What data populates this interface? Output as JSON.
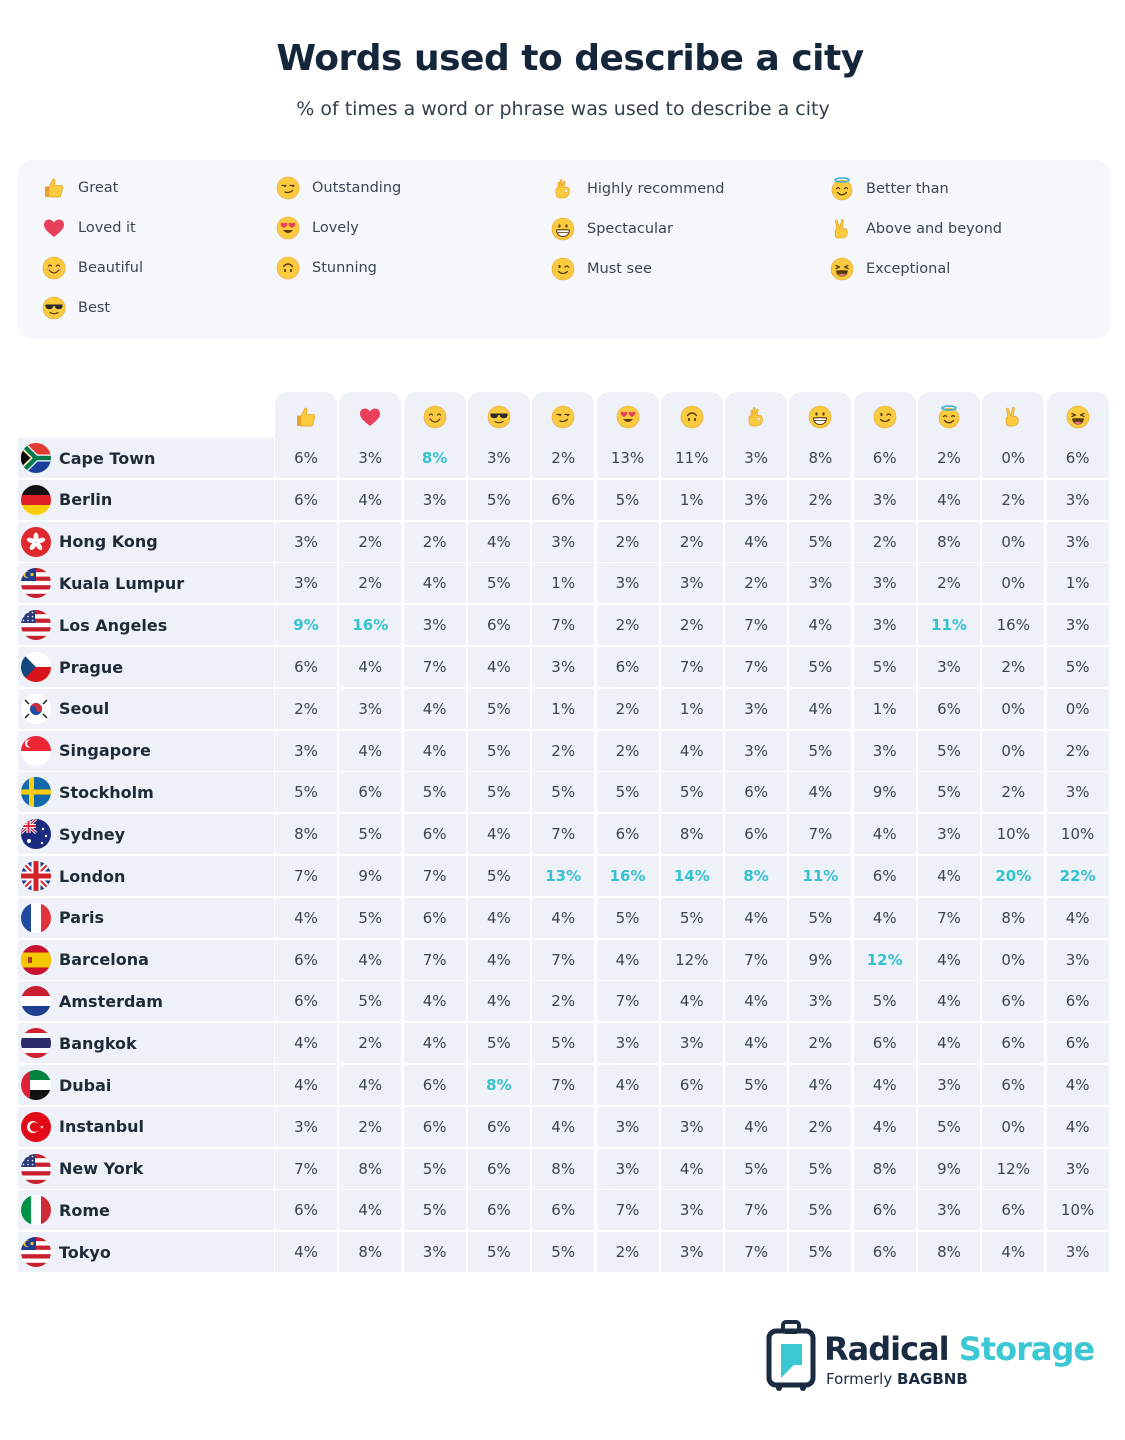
{
  "header": {
    "title": "Words used to describe a city",
    "subtitle": "% of times a word or phrase was used to describe a city"
  },
  "legend": [
    {
      "icon": "thumbs-up-icon",
      "label": "Great"
    },
    {
      "icon": "heart-icon",
      "label": "Loved it"
    },
    {
      "icon": "smiling-face-icon",
      "label": "Beautiful"
    },
    {
      "icon": "sunglasses-face-icon",
      "label": "Best"
    },
    {
      "icon": "smirking-face-icon",
      "label": "Outstanding"
    },
    {
      "icon": "heart-eyes-face-icon",
      "label": "Lovely"
    },
    {
      "icon": "upside-down-face-icon",
      "label": "Stunning"
    },
    {
      "icon": "ok-hand-icon",
      "label": "Highly recommend"
    },
    {
      "icon": "grinning-face-icon",
      "label": "Spectacular"
    },
    {
      "icon": "winking-face-icon",
      "label": "Must see"
    },
    {
      "icon": "halo-face-icon",
      "label": "Better than"
    },
    {
      "icon": "victory-hand-icon",
      "label": "Above and beyond"
    },
    {
      "icon": "laughing-face-icon",
      "label": "Exceptional"
    }
  ],
  "columns": [
    "thumbs-up-icon",
    "heart-icon",
    "smiling-face-icon",
    "sunglasses-face-icon",
    "smirking-face-icon",
    "heart-eyes-face-icon",
    "upside-down-face-icon",
    "ok-hand-icon",
    "grinning-face-icon",
    "winking-face-icon",
    "halo-face-icon",
    "victory-hand-icon",
    "laughing-face-icon"
  ],
  "highlight_color": "#35c2d0",
  "rows": [
    {
      "city": "Cape Town",
      "flag": "south-africa-flag-icon",
      "values": [
        "6%",
        "3%",
        "8%",
        "3%",
        "2%",
        "13%",
        "11%",
        "3%",
        "8%",
        "6%",
        "2%",
        "0%",
        "6%"
      ],
      "highlight": [
        2
      ]
    },
    {
      "city": "Berlin",
      "flag": "germany-flag-icon",
      "values": [
        "6%",
        "4%",
        "3%",
        "5%",
        "6%",
        "5%",
        "1%",
        "3%",
        "2%",
        "3%",
        "4%",
        "2%",
        "3%"
      ],
      "highlight": []
    },
    {
      "city": "Hong Kong",
      "flag": "hong-kong-flag-icon",
      "values": [
        "3%",
        "2%",
        "2%",
        "4%",
        "3%",
        "2%",
        "2%",
        "4%",
        "5%",
        "2%",
        "8%",
        "0%",
        "3%"
      ],
      "highlight": []
    },
    {
      "city": "Kuala Lumpur",
      "flag": "malaysia-flag-icon",
      "values": [
        "3%",
        "2%",
        "4%",
        "5%",
        "1%",
        "3%",
        "3%",
        "2%",
        "3%",
        "3%",
        "2%",
        "0%",
        "1%"
      ],
      "highlight": []
    },
    {
      "city": "Los Angeles",
      "flag": "usa-flag-icon",
      "values": [
        "9%",
        "16%",
        "3%",
        "6%",
        "7%",
        "2%",
        "2%",
        "7%",
        "4%",
        "3%",
        "11%",
        "16%",
        "3%"
      ],
      "highlight": [
        0,
        1,
        10
      ]
    },
    {
      "city": "Prague",
      "flag": "czech-flag-icon",
      "values": [
        "6%",
        "4%",
        "7%",
        "4%",
        "3%",
        "6%",
        "7%",
        "7%",
        "5%",
        "5%",
        "3%",
        "2%",
        "5%"
      ],
      "highlight": []
    },
    {
      "city": "Seoul",
      "flag": "south-korea-flag-icon",
      "values": [
        "2%",
        "3%",
        "4%",
        "5%",
        "1%",
        "2%",
        "1%",
        "3%",
        "4%",
        "1%",
        "6%",
        "0%",
        "0%"
      ],
      "highlight": []
    },
    {
      "city": "Singapore",
      "flag": "singapore-flag-icon",
      "values": [
        "3%",
        "4%",
        "4%",
        "5%",
        "2%",
        "2%",
        "4%",
        "3%",
        "5%",
        "3%",
        "5%",
        "0%",
        "2%"
      ],
      "highlight": []
    },
    {
      "city": "Stockholm",
      "flag": "sweden-flag-icon",
      "values": [
        "5%",
        "6%",
        "5%",
        "5%",
        "5%",
        "5%",
        "5%",
        "6%",
        "4%",
        "9%",
        "5%",
        "2%",
        "3%"
      ],
      "highlight": []
    },
    {
      "city": "Sydney",
      "flag": "australia-flag-icon",
      "values": [
        "8%",
        "5%",
        "6%",
        "4%",
        "7%",
        "6%",
        "8%",
        "6%",
        "7%",
        "4%",
        "3%",
        "10%",
        "10%"
      ],
      "highlight": []
    },
    {
      "city": "London",
      "flag": "uk-flag-icon",
      "values": [
        "7%",
        "9%",
        "7%",
        "5%",
        "13%",
        "16%",
        "14%",
        "8%",
        "11%",
        "6%",
        "4%",
        "20%",
        "22%"
      ],
      "highlight": [
        4,
        5,
        6,
        7,
        8,
        11,
        12
      ]
    },
    {
      "city": "Paris",
      "flag": "france-flag-icon",
      "values": [
        "4%",
        "5%",
        "6%",
        "4%",
        "4%",
        "5%",
        "5%",
        "4%",
        "5%",
        "4%",
        "7%",
        "8%",
        "4%"
      ],
      "highlight": []
    },
    {
      "city": "Barcelona",
      "flag": "spain-flag-icon",
      "values": [
        "6%",
        "4%",
        "7%",
        "4%",
        "7%",
        "4%",
        "12%",
        "7%",
        "9%",
        "12%",
        "4%",
        "0%",
        "3%"
      ],
      "highlight": [
        9
      ]
    },
    {
      "city": "Amsterdam",
      "flag": "netherlands-flag-icon",
      "values": [
        "6%",
        "5%",
        "4%",
        "4%",
        "2%",
        "7%",
        "4%",
        "4%",
        "3%",
        "5%",
        "4%",
        "6%",
        "6%"
      ],
      "highlight": []
    },
    {
      "city": "Bangkok",
      "flag": "thailand-flag-icon",
      "values": [
        "4%",
        "2%",
        "4%",
        "5%",
        "5%",
        "3%",
        "3%",
        "4%",
        "2%",
        "6%",
        "4%",
        "6%",
        "6%"
      ],
      "highlight": []
    },
    {
      "city": "Dubai",
      "flag": "uae-flag-icon",
      "values": [
        "4%",
        "4%",
        "6%",
        "8%",
        "7%",
        "4%",
        "6%",
        "5%",
        "4%",
        "4%",
        "3%",
        "6%",
        "4%"
      ],
      "highlight": [
        3
      ]
    },
    {
      "city": "Instanbul",
      "flag": "turkey-flag-icon",
      "values": [
        "3%",
        "2%",
        "6%",
        "6%",
        "4%",
        "3%",
        "3%",
        "4%",
        "2%",
        "4%",
        "5%",
        "0%",
        "4%"
      ],
      "highlight": []
    },
    {
      "city": "New York",
      "flag": "usa-flag-icon",
      "values": [
        "7%",
        "8%",
        "5%",
        "6%",
        "8%",
        "3%",
        "4%",
        "5%",
        "5%",
        "8%",
        "9%",
        "12%",
        "3%"
      ],
      "highlight": []
    },
    {
      "city": "Rome",
      "flag": "italy-flag-icon",
      "values": [
        "6%",
        "4%",
        "5%",
        "6%",
        "6%",
        "7%",
        "3%",
        "7%",
        "5%",
        "6%",
        "3%",
        "6%",
        "10%"
      ],
      "highlight": []
    },
    {
      "city": "Tokyo",
      "flag": "malaysia-flag-icon",
      "values": [
        "4%",
        "8%",
        "3%",
        "5%",
        "5%",
        "2%",
        "3%",
        "7%",
        "5%",
        "6%",
        "8%",
        "4%",
        "3%"
      ],
      "highlight": []
    }
  ],
  "footer": {
    "brand_part1": "Radical",
    "brand_part2": "Storage",
    "formerly_prefix": "Formerly",
    "formerly_name": "BAGBNB"
  }
}
